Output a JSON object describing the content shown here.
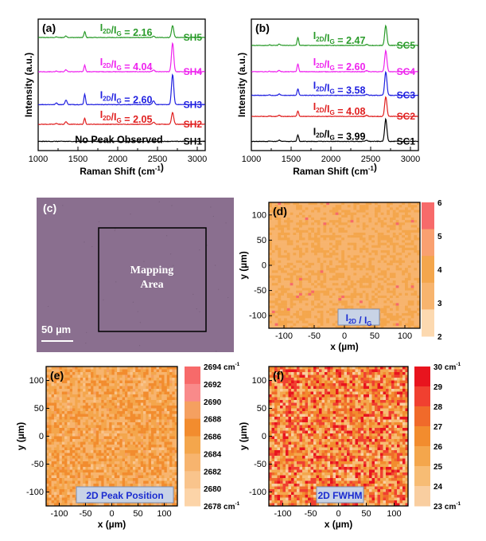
{
  "chart_data": [
    {
      "panel": "(a)",
      "type": "line",
      "xlabel": "Raman Shift (cm-1)",
      "ylabel": "Intensity (a.u.)",
      "xlim": [
        1000,
        3100
      ],
      "xticks": [
        "1000",
        "1500",
        "2000",
        "2500",
        "3000"
      ],
      "series": [
        {
          "name": "SH5",
          "ratio_label": "I2D/IG = 2.16",
          "color": "#2a9b2a",
          "offset": 0.86,
          "g_height": 0.045,
          "d_height": 0.012,
          "d2_height": 0.09
        },
        {
          "name": "SH4",
          "ratio_label": "I2D/IG = 4.04",
          "color": "#ee22ee",
          "offset": 0.6,
          "g_height": 0.05,
          "d_height": 0.015,
          "d2_height": 0.22
        },
        {
          "name": "SH3",
          "ratio_label": "I2D/IG = 2.60",
          "color": "#2020e0",
          "offset": 0.35,
          "g_height": 0.08,
          "d_height": 0.035,
          "d2_height": 0.23
        },
        {
          "name": "SH2",
          "ratio_label": "I2D/IG = 2.05",
          "color": "#e02020",
          "offset": 0.2,
          "g_height": 0.045,
          "d_height": 0.02,
          "d2_height": 0.09
        },
        {
          "name": "SH1",
          "ratio_label": "No Peak Observed",
          "color": "#000000",
          "offset": 0.07,
          "g_height": 0.0,
          "d_height": 0.0,
          "d2_height": 0.0
        }
      ]
    },
    {
      "panel": "(b)",
      "type": "line",
      "xlabel": "Raman Shift (cm-1)",
      "ylabel": "Intensity (a.u.)",
      "xlim": [
        1000,
        3100
      ],
      "xticks": [
        "1000",
        "1500",
        "2000",
        "2500",
        "3000"
      ],
      "series": [
        {
          "name": "SC5",
          "ratio_label": "I2D/IG = 2.47",
          "color": "#2a9b2a",
          "offset": 0.8,
          "g_height": 0.06,
          "d_height": 0.01,
          "d2_height": 0.15
        },
        {
          "name": "SC4",
          "ratio_label": "I2D/IG = 2.60",
          "color": "#ee22ee",
          "offset": 0.6,
          "g_height": 0.06,
          "d_height": 0.01,
          "d2_height": 0.16
        },
        {
          "name": "SC3",
          "ratio_label": "I2D/IG = 3.58",
          "color": "#2020e0",
          "offset": 0.42,
          "g_height": 0.05,
          "d_height": 0.01,
          "d2_height": 0.18
        },
        {
          "name": "SC2",
          "ratio_label": "I2D/IG = 4.08",
          "color": "#e02020",
          "offset": 0.26,
          "g_height": 0.04,
          "d_height": 0.01,
          "d2_height": 0.15
        },
        {
          "name": "SC1",
          "ratio_label": "I2D/IG = 3.99",
          "color": "#000000",
          "offset": 0.07,
          "g_height": 0.05,
          "d_height": 0.01,
          "d2_height": 0.17
        }
      ]
    },
    {
      "panel": "(c)",
      "type": "image",
      "box_label": "Mapping Area",
      "scale_label": "50 µm",
      "color": "#8a6f8f"
    },
    {
      "panel": "(d)",
      "type": "heatmap",
      "xlabel": "x (µm)",
      "ylabel": "y (µm)",
      "xlim": [
        -125,
        125
      ],
      "ylim": [
        -125,
        125
      ],
      "xticks": [
        "-100",
        "-50",
        "0",
        "50",
        "100"
      ],
      "yticks": [
        "100",
        "50",
        "0",
        "-50",
        "-100"
      ],
      "inset_label": "I2D / IG",
      "colorbar_ticks": [
        "6",
        "5",
        "4",
        "3",
        "2"
      ],
      "colorbar_colors": [
        "#f76a6a",
        "#f9a070",
        "#f4a64c",
        "#f7b46e",
        "#fcd9b0"
      ],
      "value_range": [
        2,
        6
      ],
      "grid": 50,
      "base_value": 3.5
    },
    {
      "panel": "(e)",
      "type": "heatmap",
      "xlabel": "x (µm)",
      "ylabel": "y (µm)",
      "xlim": [
        -125,
        125
      ],
      "ylim": [
        -125,
        125
      ],
      "xticks": [
        "-100",
        "-50",
        "0",
        "50",
        "100"
      ],
      "yticks": [
        "100",
        "50",
        "0",
        "-50",
        "-100"
      ],
      "inset_label": "2D Peak Position",
      "colorbar_ticks": [
        "2694 cm-1",
        "2692",
        "2690",
        "2688",
        "2686",
        "2684",
        "2682",
        "2680",
        "2678 cm-1"
      ],
      "colorbar_colors": [
        "#f76a6a",
        "#f98a8a",
        "#f5a060",
        "#f28c2e",
        "#f4a64c",
        "#f7b46e",
        "#f9c48c",
        "#fcd4a8",
        "#fde3c6"
      ],
      "value_range": [
        2678,
        2694
      ],
      "grid": 50,
      "base_value": 2686
    },
    {
      "panel": "(f)",
      "type": "heatmap",
      "xlabel": "x (µm)",
      "ylabel": "y (µm)",
      "xlim": [
        -125,
        125
      ],
      "ylim": [
        -125,
        125
      ],
      "xticks": [
        "-100",
        "-50",
        "0",
        "50",
        "100"
      ],
      "yticks": [
        "100",
        "50",
        "0",
        "-50",
        "-100"
      ],
      "inset_label": "2D FWHM",
      "colorbar_ticks": [
        "30 cm-1",
        "29",
        "28",
        "27",
        "26",
        "25",
        "24",
        "23 cm-1"
      ],
      "colorbar_colors": [
        "#e8141e",
        "#f04030",
        "#f06a2a",
        "#f28c2e",
        "#f4a64c",
        "#f7bc74",
        "#f9cea0",
        "#fde3c6"
      ],
      "value_range": [
        23,
        30
      ],
      "grid": 50,
      "base_value": 27
    }
  ]
}
